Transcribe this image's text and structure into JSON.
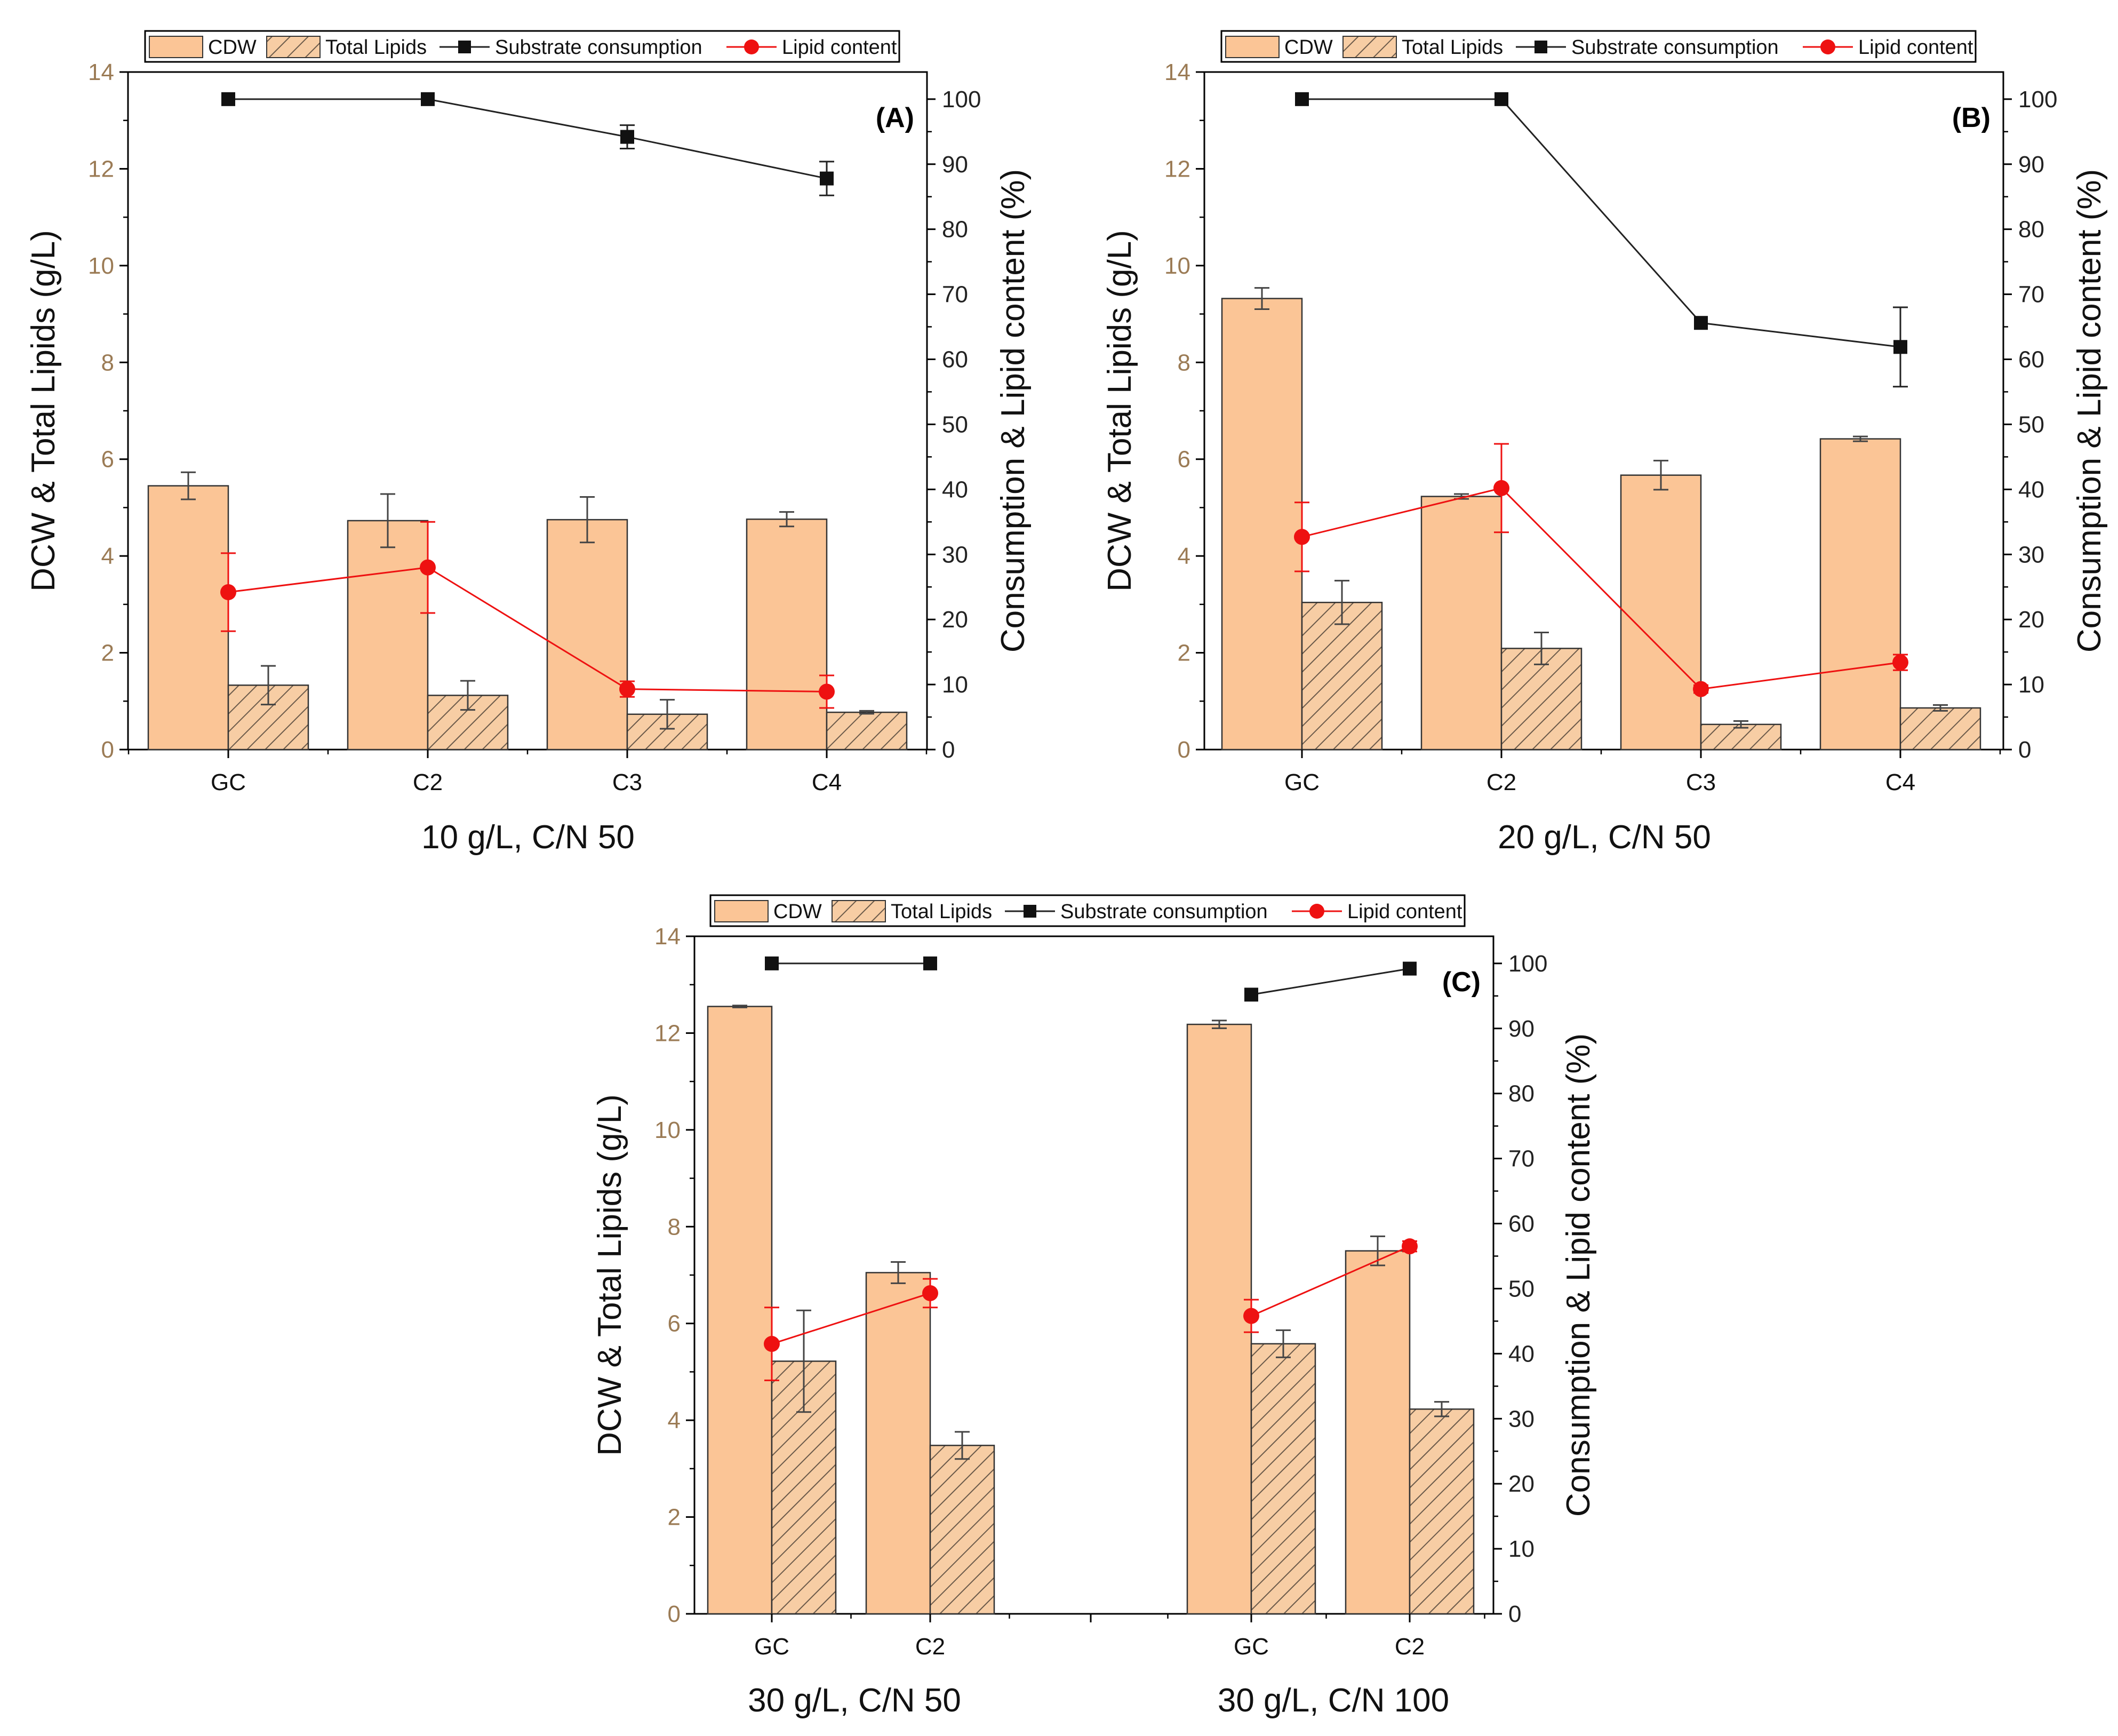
{
  "colors": {
    "cdw_fill": "#fbc596",
    "lipid_fill": "#f7cda4",
    "hatch": "#6b5a4a",
    "substrate": "#222222",
    "lipid_content": "#ee1111",
    "left_axis": "#9b7b55",
    "right_axis": "#222222"
  },
  "legend": {
    "cdw": "CDW",
    "total_lipids": "Total Lipids",
    "substrate": "Substrate consumption",
    "lipid_content": "Lipid content"
  },
  "chart_data": [
    {
      "type": "bar",
      "panel": "(A)",
      "xlabel": "10 g/L, C/N 50",
      "ylabel": "DCW & Total Lipids (g/L)",
      "y2label": "Consumption & Lipid content (%)",
      "ylim": [
        0,
        14
      ],
      "y2lim": [
        0,
        104.17
      ],
      "yticks": [
        "0",
        "2",
        "4",
        "6",
        "8",
        "10",
        "12",
        "14"
      ],
      "y2ticks": [
        "0",
        "10",
        "20",
        "30",
        "40",
        "50",
        "60",
        "70",
        "80",
        "90",
        "100"
      ],
      "categories": [
        "GC",
        "C2",
        "C3",
        "C4"
      ],
      "series": [
        {
          "name": "CDW",
          "kind": "bar",
          "values": [
            5.45,
            4.73,
            4.75,
            4.76
          ],
          "errors": [
            0.28,
            0.55,
            0.47,
            0.15
          ]
        },
        {
          "name": "Total Lipids",
          "kind": "bar",
          "values": [
            1.33,
            1.12,
            0.73,
            0.77
          ],
          "errors": [
            0.4,
            0.3,
            0.3,
            0.03
          ]
        },
        {
          "name": "Substrate consumption",
          "kind": "line",
          "values": [
            100,
            100,
            94.2,
            87.8
          ],
          "errors": [
            0,
            0,
            1.8,
            2.6
          ]
        },
        {
          "name": "Lipid content",
          "kind": "line",
          "values": [
            24.2,
            28.0,
            9.3,
            8.9
          ],
          "errors": [
            6.0,
            7.0,
            1.2,
            2.5
          ]
        }
      ]
    },
    {
      "type": "bar",
      "panel": "(B)",
      "xlabel": "20 g/L, C/N 50",
      "ylabel": "DCW & Total Lipids (g/L)",
      "y2label": "Consumption & Lipid content (%)",
      "ylim": [
        0,
        14
      ],
      "y2lim": [
        0,
        104.17
      ],
      "yticks": [
        "0",
        "2",
        "4",
        "6",
        "8",
        "10",
        "12",
        "14"
      ],
      "y2ticks": [
        "0",
        "10",
        "20",
        "30",
        "40",
        "50",
        "60",
        "70",
        "80",
        "90",
        "100"
      ],
      "categories": [
        "GC",
        "C2",
        "C3",
        "C4"
      ],
      "series": [
        {
          "name": "CDW",
          "kind": "bar",
          "values": [
            9.32,
            5.23,
            5.67,
            6.42
          ],
          "errors": [
            0.22,
            0.05,
            0.3,
            0.05
          ]
        },
        {
          "name": "Total Lipids",
          "kind": "bar",
          "values": [
            3.04,
            2.09,
            0.52,
            0.86
          ],
          "errors": [
            0.45,
            0.33,
            0.07,
            0.06
          ]
        },
        {
          "name": "Substrate consumption",
          "kind": "line",
          "values": [
            100,
            100,
            65.6,
            61.9
          ],
          "errors": [
            0,
            0,
            0,
            6.1
          ]
        },
        {
          "name": "Lipid content",
          "kind": "line",
          "values": [
            32.7,
            40.2,
            9.3,
            13.4
          ],
          "errors": [
            5.3,
            6.8,
            0.6,
            1.2
          ]
        }
      ]
    },
    {
      "type": "bar",
      "panel": "(C)",
      "xlabel_groups": [
        "30 g/L, C/N 50",
        "30 g/L, C/N 100"
      ],
      "ylabel": "DCW & Total Lipids (g/L)",
      "y2label": "Consumption & Lipid content (%)",
      "ylim": [
        0,
        14
      ],
      "y2lim": [
        0,
        104.17
      ],
      "yticks": [
        "0",
        "2",
        "4",
        "6",
        "8",
        "10",
        "12",
        "14"
      ],
      "y2ticks": [
        "0",
        "10",
        "20",
        "30",
        "40",
        "50",
        "60",
        "70",
        "80",
        "90",
        "100"
      ],
      "categories": [
        "GC",
        "C2",
        "",
        "GC",
        "C2"
      ],
      "series": [
        {
          "name": "CDW",
          "kind": "bar",
          "values": [
            12.55,
            7.05,
            null,
            12.18,
            7.5
          ],
          "errors": [
            0.02,
            0.22,
            null,
            0.08,
            0.3
          ]
        },
        {
          "name": "Total Lipids",
          "kind": "bar",
          "values": [
            5.22,
            3.48,
            null,
            5.58,
            4.23
          ],
          "errors": [
            1.05,
            0.28,
            null,
            0.28,
            0.15
          ]
        },
        {
          "name": "Substrate consumption",
          "kind": "line",
          "values": [
            100,
            100,
            null,
            95.2,
            99.2
          ],
          "errors": [
            0,
            0,
            null,
            0,
            0
          ]
        },
        {
          "name": "Lipid content",
          "kind": "line",
          "values": [
            41.5,
            49.3,
            null,
            45.8,
            56.5
          ],
          "errors": [
            5.6,
            2.2,
            null,
            2.5,
            0.8
          ]
        }
      ]
    }
  ]
}
